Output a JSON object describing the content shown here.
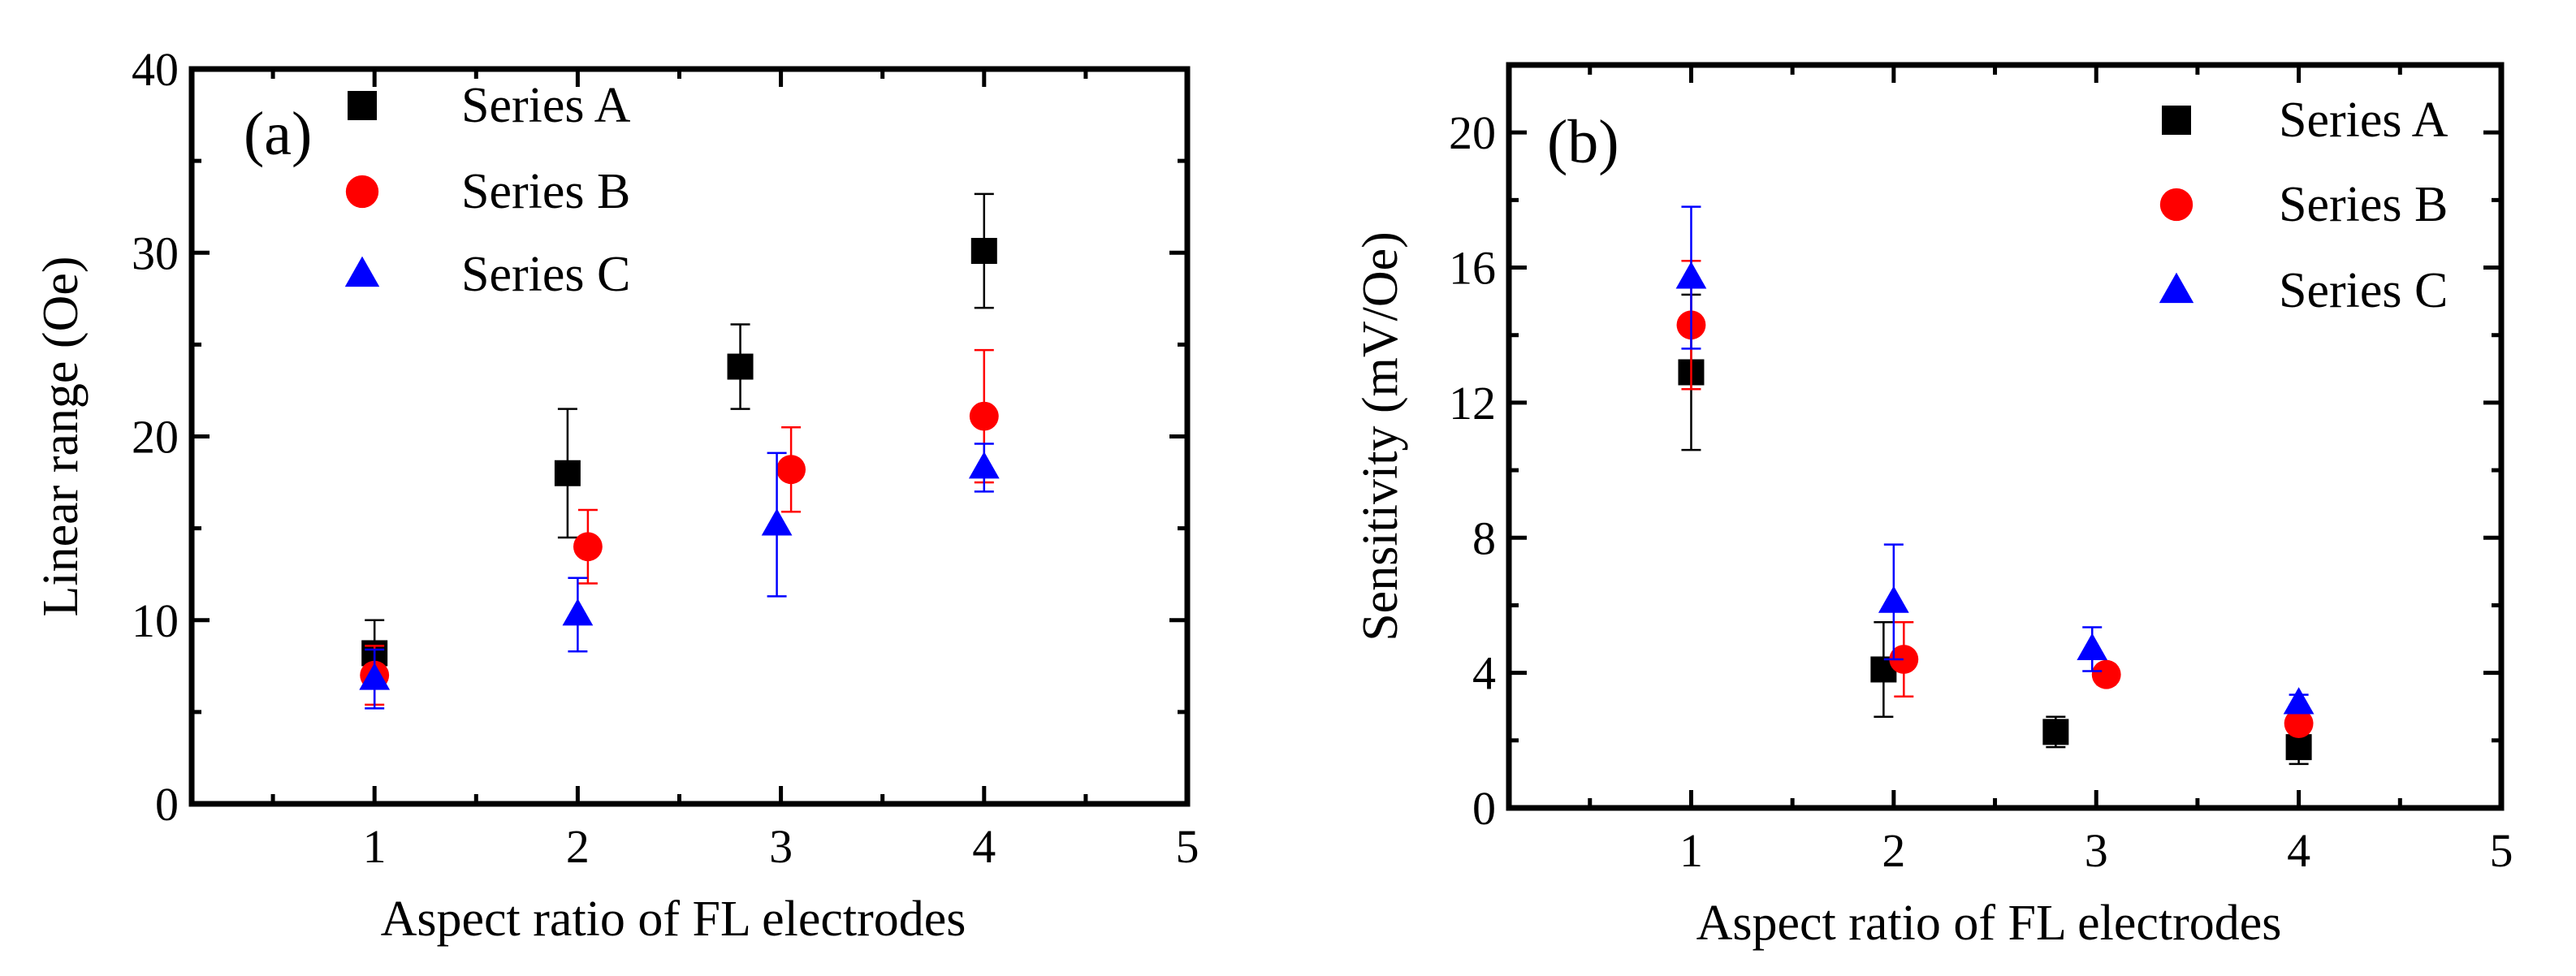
{
  "chart_data": [
    {
      "type": "scatter",
      "panel_label": "(a)",
      "xlabel": "Aspect ratio of FL electrodes",
      "ylabel": "Linear range (Oe)",
      "xlim": [
        0.1,
        5
      ],
      "ylim": [
        0,
        40
      ],
      "xticks": [
        1,
        2,
        3,
        4,
        5
      ],
      "yticks": [
        0,
        10,
        20,
        30,
        40
      ],
      "x_minor_ticks": [
        0.5,
        1.5,
        2.5,
        3.5,
        4.5
      ],
      "y_minor_ticks": [
        5,
        15,
        25,
        35
      ],
      "legend_position": "top-left",
      "series": [
        {
          "name": "Series A",
          "marker": "square",
          "color": "#000000",
          "points": [
            {
              "x": 1.0,
              "y": 8.2,
              "err": 1.8
            },
            {
              "x": 1.95,
              "y": 18.0,
              "err": 3.5
            },
            {
              "x": 2.8,
              "y": 23.8,
              "err": 2.3
            },
            {
              "x": 4.0,
              "y": 30.1,
              "err": 3.1
            }
          ]
        },
        {
          "name": "Series B",
          "marker": "circle",
          "color": "#ff0000",
          "points": [
            {
              "x": 1.0,
              "y": 7.0,
              "err": 1.6
            },
            {
              "x": 2.05,
              "y": 14.0,
              "err": 2.0
            },
            {
              "x": 3.05,
              "y": 18.2,
              "err": 2.3
            },
            {
              "x": 4.0,
              "y": 21.1,
              "err": 3.6
            }
          ]
        },
        {
          "name": "Series C",
          "marker": "triangle",
          "color": "#0000ff",
          "points": [
            {
              "x": 1.0,
              "y": 6.8,
              "err": 1.6
            },
            {
              "x": 2.0,
              "y": 10.3,
              "err": 2.0
            },
            {
              "x": 2.98,
              "y": 15.2,
              "err": 3.9
            },
            {
              "x": 4.0,
              "y": 18.3,
              "err": 1.3
            }
          ]
        }
      ]
    },
    {
      "type": "scatter",
      "panel_label": "(b)",
      "xlabel": "Aspect ratio of FL electrodes",
      "ylabel": "Sensitivity (mV/Oe)",
      "xlim": [
        0.1,
        5
      ],
      "ylim": [
        0,
        22
      ],
      "xticks": [
        1,
        2,
        3,
        4,
        5
      ],
      "yticks": [
        0,
        4,
        8,
        12,
        16,
        20
      ],
      "x_minor_ticks": [
        0.5,
        1.5,
        2.5,
        3.5,
        4.5
      ],
      "y_minor_ticks": [
        2,
        6,
        10,
        14,
        18
      ],
      "legend_position": "top-right",
      "series": [
        {
          "name": "Series A",
          "marker": "square",
          "color": "#000000",
          "points": [
            {
              "x": 1.0,
              "y": 12.9,
              "err": 2.3
            },
            {
              "x": 1.95,
              "y": 4.1,
              "err": 1.4
            },
            {
              "x": 2.8,
              "y": 2.25,
              "err": 0.45
            },
            {
              "x": 4.0,
              "y": 1.8,
              "err": 0.5
            }
          ]
        },
        {
          "name": "Series B",
          "marker": "circle",
          "color": "#ff0000",
          "points": [
            {
              "x": 1.0,
              "y": 14.3,
              "err": 1.9
            },
            {
              "x": 2.05,
              "y": 4.4,
              "err": 1.1
            },
            {
              "x": 3.05,
              "y": 3.95,
              "err": 0.3
            },
            {
              "x": 4.0,
              "y": 2.5,
              "err": 0.25
            }
          ]
        },
        {
          "name": "Series C",
          "marker": "triangle",
          "color": "#0000ff",
          "points": [
            {
              "x": 1.0,
              "y": 15.7,
              "err": 2.1
            },
            {
              "x": 2.0,
              "y": 6.1,
              "err": 1.7
            },
            {
              "x": 2.98,
              "y": 4.7,
              "err": 0.65
            },
            {
              "x": 4.0,
              "y": 3.1,
              "err": 0.25
            }
          ]
        }
      ]
    }
  ]
}
